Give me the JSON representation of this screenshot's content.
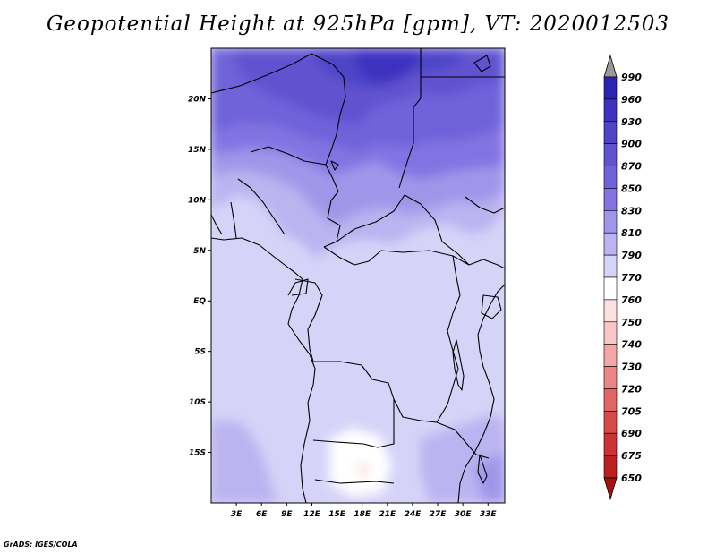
{
  "title": "Geopotential Height at 925hPa [gpm], VT: 2020012503",
  "footer": "GrADS: IGES/COLA",
  "map": {
    "lat_labels": [
      "20N",
      "15N",
      "10N",
      "5N",
      "EQ",
      "5S",
      "10S",
      "15S"
    ],
    "lon_labels": [
      "3E",
      "6E",
      "9E",
      "12E",
      "15E",
      "18E",
      "21E",
      "24E",
      "27E",
      "30E",
      "33E"
    ],
    "lat_values": [
      20,
      15,
      10,
      5,
      0,
      -5,
      -10,
      -15
    ],
    "lon_values": [
      3,
      6,
      9,
      12,
      15,
      18,
      21,
      24,
      27,
      30,
      33
    ],
    "extent": {
      "lon_min": 0,
      "lon_max": 35,
      "lat_min": -20,
      "lat_max": 25
    }
  },
  "colorbar": {
    "levels": [
      "990",
      "960",
      "930",
      "900",
      "870",
      "850",
      "830",
      "810",
      "790",
      "770",
      "760",
      "750",
      "740",
      "730",
      "720",
      "705",
      "690",
      "675",
      "650"
    ],
    "colors": [
      "#1a10a8",
      "#2c22b4",
      "#3d33c0",
      "#4e44c8",
      "#6053d0",
      "#7062d9",
      "#8373e2",
      "#a096e9",
      "#bbb4f0",
      "#d6d3f8",
      "#ffffff",
      "#fde1e1",
      "#f9c6c6",
      "#f3a6a6",
      "#ec8585",
      "#e26565",
      "#d84a4a",
      "#cc3333",
      "#bb2020",
      "#a31212"
    ],
    "top_arrow_color": "#999999",
    "bottom_arrow_color": "#a31212"
  }
}
